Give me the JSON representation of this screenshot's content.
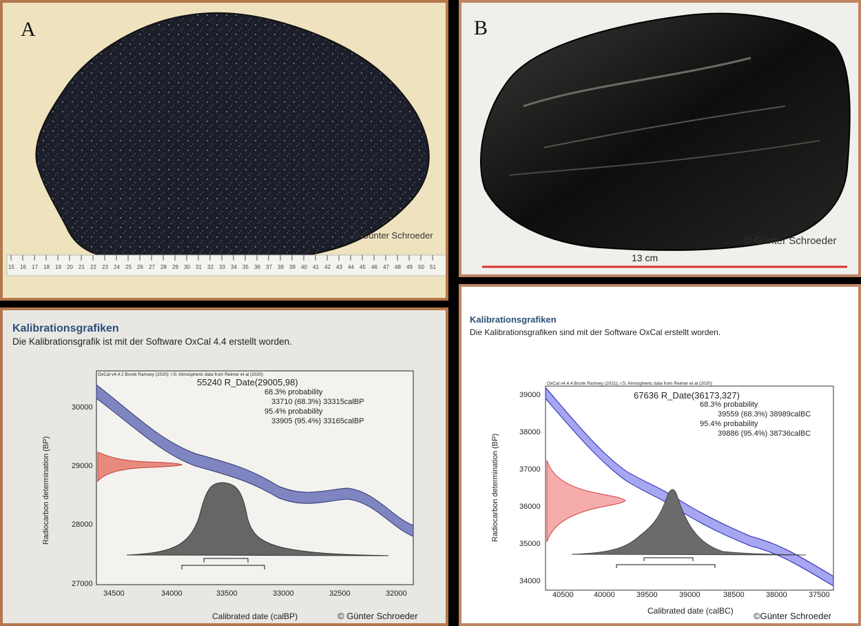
{
  "panel_a": {
    "letter": "A",
    "copyright": "© Günter Schroeder",
    "ruler_ticks": [
      "15",
      "16",
      "17",
      "18",
      "19",
      "20",
      "21",
      "22",
      "23",
      "24",
      "25",
      "26",
      "27",
      "28",
      "29",
      "30",
      "31",
      "32",
      "33",
      "34",
      "35",
      "36",
      "37",
      "38",
      "39",
      "40",
      "41",
      "42",
      "43",
      "44",
      "45",
      "46",
      "47",
      "48",
      "49",
      "50",
      "51"
    ]
  },
  "panel_b": {
    "letter": "B",
    "copyright": "© Günter Schroeder",
    "scale_label": "13 cm",
    "scale_color": "#d9302c"
  },
  "panel_c": {
    "title": "Kalibrationsgrafiken",
    "subtitle": "Die Kalibrationsgrafik ist mit der Software OxCal 4.4 erstellt worden.",
    "chart": {
      "header": "OxCal v4.4.2 Bronk Ramsey (2020); r:5; Atmospheric data from Reimer et al (2020)",
      "sample": "55240 R_Date(29005,98)",
      "p68_label": "68.3% probability",
      "p68_range": "33710 (68.3%) 33315calBP",
      "p95_label": "95.4% probability",
      "p95_range": "33905 (95.4%) 33165calBP",
      "ylabel": "Radiocarbon determination (BP)",
      "xlabel": "Calibrated date (calBP)",
      "yticks": [
        "30000",
        "29000",
        "28000",
        "27000"
      ],
      "xticks": [
        "34500",
        "34000",
        "33500",
        "33000",
        "32500",
        "32000"
      ],
      "copyright": "© Günter Schroeder",
      "curve_color": "#6a72b8",
      "date_color": "#e5675a"
    }
  },
  "panel_d": {
    "title": "Kalibrationsgrafiken",
    "subtitle": "Die Kalibrationsgrafiken sind mit der Software OxCal erstellt worden.",
    "chart": {
      "header": "OxCal v4.4.4 Bronk Ramsey (2021); r:5; Atmospheric data from Reimer et al (2020)",
      "sample": "67636 R_Date(36173,327)",
      "p68_label": "68.3% probability",
      "p68_range": "39559 (68.3%) 38989calBC",
      "p95_label": "95.4% probability",
      "p95_range": "39886 (95.4%) 38736calBC",
      "ylabel": "Radiocarbon determination (BP)",
      "xlabel": "Calibrated date (calBC)",
      "yticks": [
        "39000",
        "38000",
        "37000",
        "36000",
        "35000",
        "34000"
      ],
      "xticks": [
        "40500",
        "40000",
        "39500",
        "39000",
        "38500",
        "38000",
        "37500"
      ],
      "copyright": "©Günter Schroeder",
      "curve_color": "#3a3ae0",
      "date_color": "#ef5a5a"
    }
  }
}
